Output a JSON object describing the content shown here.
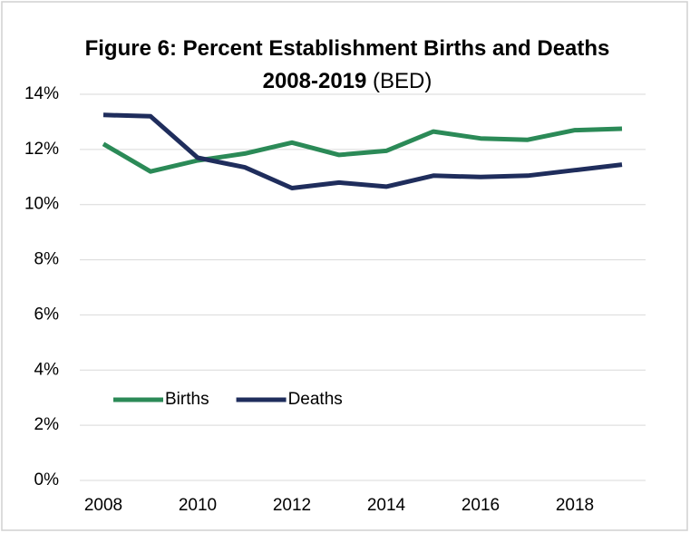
{
  "chart_data": {
    "type": "line",
    "title": "Figure 6: Percent Establishment Births and Deaths 2008-2019",
    "title_note": "(BED)",
    "x": [
      2008,
      2009,
      2010,
      2011,
      2012,
      2013,
      2014,
      2015,
      2016,
      2017,
      2018,
      2019
    ],
    "series": [
      {
        "name": "Births",
        "color": "#2b8a57",
        "values": [
          12.2,
          11.2,
          11.6,
          11.85,
          12.25,
          11.8,
          11.95,
          12.65,
          12.4,
          12.35,
          12.7,
          12.75
        ]
      },
      {
        "name": "Deaths",
        "color": "#1f2d5c",
        "values": [
          13.25,
          13.2,
          11.7,
          11.35,
          10.6,
          10.8,
          10.65,
          11.05,
          11.0,
          11.05,
          11.25,
          11.45
        ]
      }
    ],
    "xlim": [
      2007.5,
      2019.5
    ],
    "xticks": [
      2008,
      2010,
      2012,
      2014,
      2016,
      2018
    ],
    "ylim": [
      0,
      14
    ],
    "yticks": [
      {
        "value": 0,
        "label": "0%"
      },
      {
        "value": 2,
        "label": "2%"
      },
      {
        "value": 4,
        "label": "4%"
      },
      {
        "value": 6,
        "label": "6%"
      },
      {
        "value": 8,
        "label": "8%"
      },
      {
        "value": 10,
        "label": "10%"
      },
      {
        "value": 12,
        "label": "12%"
      },
      {
        "value": 14,
        "label": "14%"
      }
    ],
    "grid": true,
    "legend": "lower left"
  }
}
